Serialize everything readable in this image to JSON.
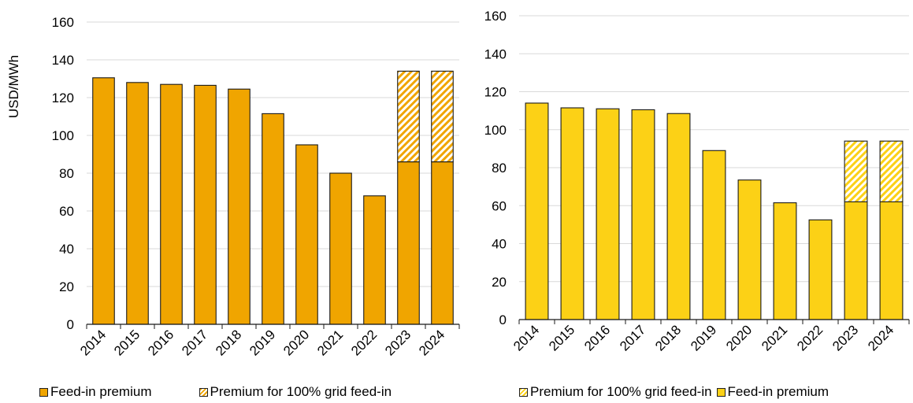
{
  "chart_data": [
    {
      "type": "bar",
      "stacked": true,
      "ylabel": "USD/MWh",
      "xlabel": "",
      "ylim": [
        0,
        160
      ],
      "yticks": [
        0,
        20,
        40,
        60,
        80,
        100,
        120,
        140,
        160
      ],
      "grid": true,
      "legend_position": "bottom",
      "categories": [
        "2014",
        "2015",
        "2016",
        "2017",
        "2018",
        "2019",
        "2020",
        "2021",
        "2022",
        "2023",
        "2024"
      ],
      "series": [
        {
          "name": "Feed-in premium",
          "color": "#f0a500",
          "pattern": "solid",
          "values": [
            130.5,
            128,
            127,
            126.5,
            124.5,
            111.5,
            95,
            80,
            68,
            86,
            86
          ]
        },
        {
          "name": "Premium for 100% grid feed-in",
          "color": "#f0a500",
          "pattern": "hatched",
          "values": [
            0,
            0,
            0,
            0,
            0,
            0,
            0,
            0,
            0,
            48,
            48
          ]
        }
      ]
    },
    {
      "type": "bar",
      "stacked": true,
      "ylabel": "",
      "xlabel": "",
      "ylim": [
        0,
        160
      ],
      "yticks": [
        0,
        20,
        40,
        60,
        80,
        100,
        120,
        140,
        160
      ],
      "grid": true,
      "legend_position": "bottom",
      "categories": [
        "2014",
        "2015",
        "2016",
        "2017",
        "2018",
        "2019",
        "2020",
        "2021",
        "2022",
        "2023",
        "2024"
      ],
      "series": [
        {
          "name": "Feed-in premium",
          "color": "#fcd116",
          "pattern": "solid",
          "values": [
            114,
            111.5,
            111,
            110.5,
            108.5,
            89,
            73.5,
            61.5,
            52.5,
            62,
            62
          ]
        },
        {
          "name": "Premium for 100% grid feed-in",
          "color": "#fcd116",
          "pattern": "hatched",
          "values": [
            0,
            0,
            0,
            0,
            0,
            0,
            0,
            0,
            0,
            32,
            32
          ]
        }
      ]
    }
  ],
  "legends": {
    "left": [
      {
        "label": "Feed-in premium",
        "swatch": "solid",
        "color": "#f0a500"
      },
      {
        "label": "Premium for 100% grid feed-in",
        "swatch": "hatched",
        "color": "#f0a500"
      }
    ],
    "right": [
      {
        "label": "Premium for 100% grid feed-in",
        "swatch": "hatched",
        "color": "#fcd116"
      },
      {
        "label": "Feed-in premium",
        "swatch": "solid",
        "color": "#fcd116"
      }
    ]
  }
}
